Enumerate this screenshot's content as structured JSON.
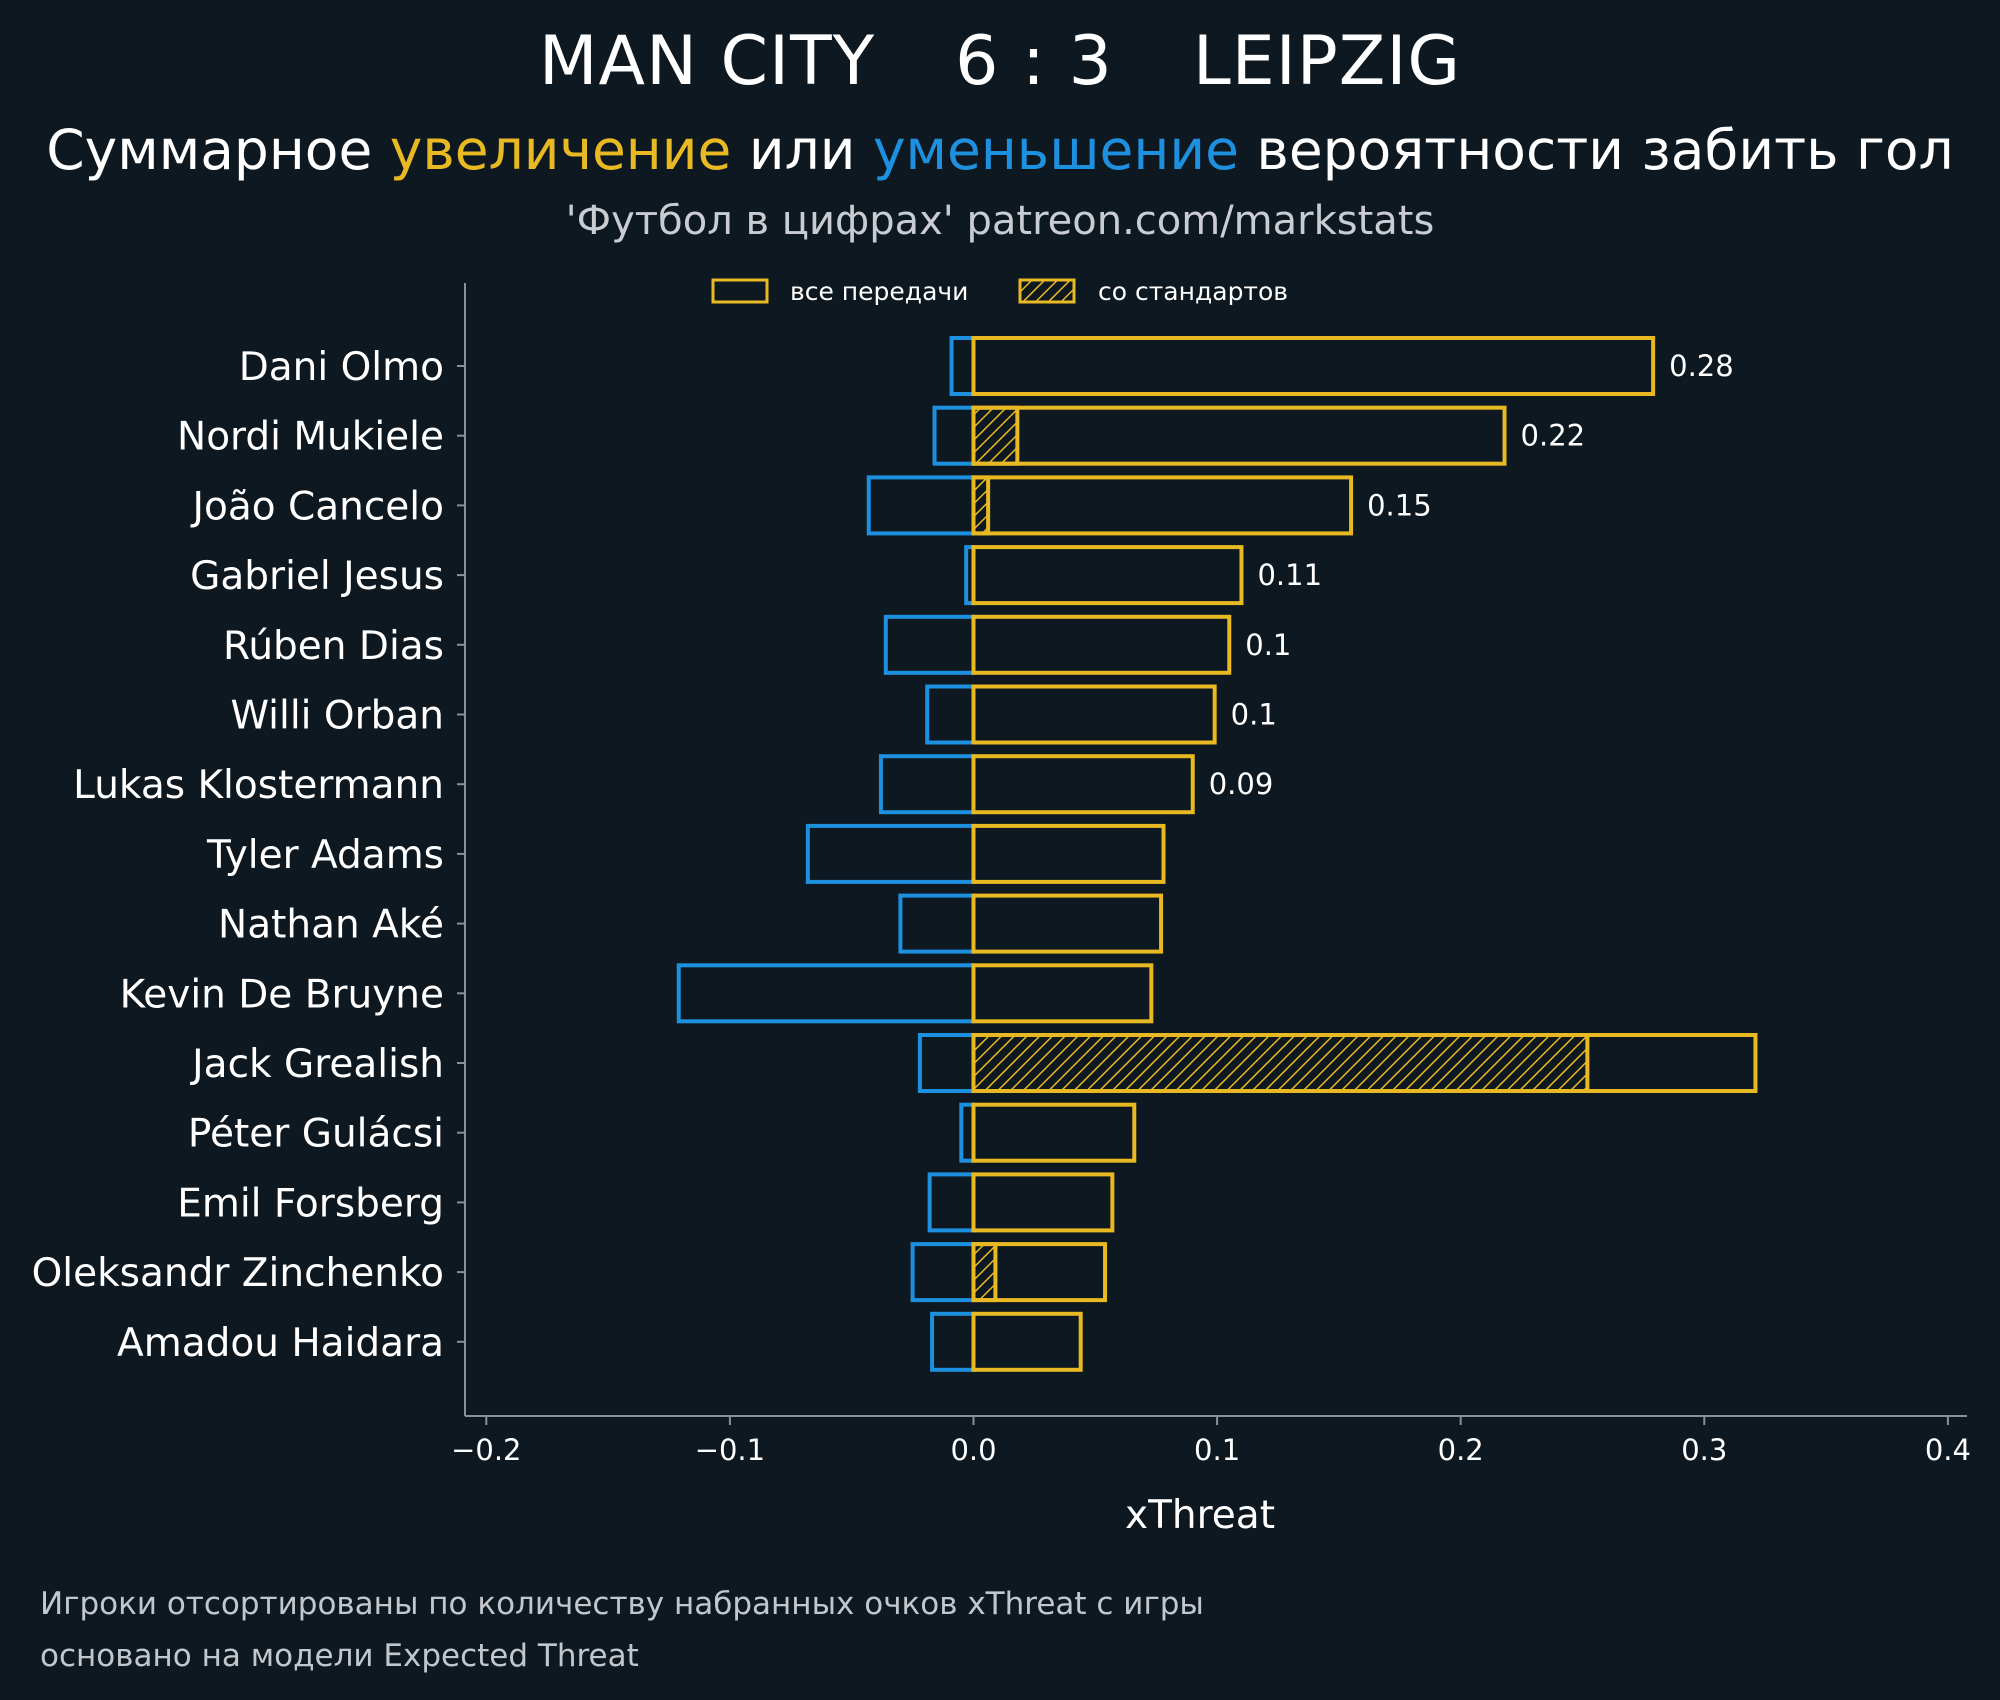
{
  "header": {
    "home_team": "MAN CITY",
    "score": "6 : 3",
    "away_team": "LEIPZIG",
    "subtitle_part1": "Суммарное ",
    "subtitle_increase": "увеличение",
    "subtitle_part2": " или ",
    "subtitle_decrease": "уменьшение",
    "subtitle_part3": " вероятности забить гол",
    "credit": "'Футбол в цифрах' patreon.com/markstats"
  },
  "footer": {
    "line1": "Игроки отсортированы по количеству набранных очков xThreat с игры",
    "line2": "основано на модели Expected Threat"
  },
  "colors": {
    "background": "#0e1820",
    "positive": "#e8b923",
    "negative": "#1e90e0",
    "axis": "#8a9096"
  },
  "chart_data": {
    "type": "bar",
    "orientation": "horizontal",
    "xlabel": "xThreat",
    "xlim": [
      -0.21,
      0.41
    ],
    "xticks": [
      -0.2,
      -0.1,
      0.0,
      0.1,
      0.2,
      0.3,
      0.4
    ],
    "xtick_labels": [
      "−0.2",
      "−0.1",
      "0.0",
      "0.1",
      "0.2",
      "0.3",
      "0.4"
    ],
    "legend": {
      "placement": "top-center",
      "entries": [
        {
          "label": "все передачи",
          "style": "outline"
        },
        {
          "label": "со стандартов",
          "style": "hatched"
        }
      ]
    },
    "categories": [
      "Dani Olmo",
      "Nordi Mukiele",
      "João Cancelo",
      "Gabriel Jesus",
      "Rúben Dias",
      "Willi Orban",
      "Lukas Klostermann",
      "Tyler Adams",
      "Nathan Aké",
      "Kevin De Bruyne",
      "Jack Grealish",
      "Péter Gulácsi",
      "Emil Forsberg",
      "Oleksandr Zinchenko",
      "Amadou Haidara"
    ],
    "series": [
      {
        "name": "увеличение (все передачи)",
        "values": [
          0.279,
          0.218,
          0.155,
          0.11,
          0.105,
          0.099,
          0.09,
          0.078,
          0.077,
          0.073,
          0.321,
          0.066,
          0.057,
          0.054,
          0.044
        ]
      },
      {
        "name": "уменьшение",
        "values": [
          -0.009,
          -0.016,
          -0.043,
          -0.003,
          -0.036,
          -0.019,
          -0.038,
          -0.068,
          -0.03,
          -0.121,
          -0.022,
          -0.005,
          -0.018,
          -0.025,
          -0.017
        ]
      },
      {
        "name": "со стандартов",
        "values": [
          0,
          0.018,
          0.006,
          0,
          0,
          0,
          0,
          0,
          0,
          0,
          0.252,
          0,
          0,
          0.009,
          0
        ]
      }
    ],
    "value_labels": [
      "0.28",
      "0.22",
      "0.15",
      "0.11",
      "0.1",
      "0.1",
      "0.09",
      "",
      "",
      "",
      "",
      "",
      "",
      "",
      ""
    ]
  }
}
